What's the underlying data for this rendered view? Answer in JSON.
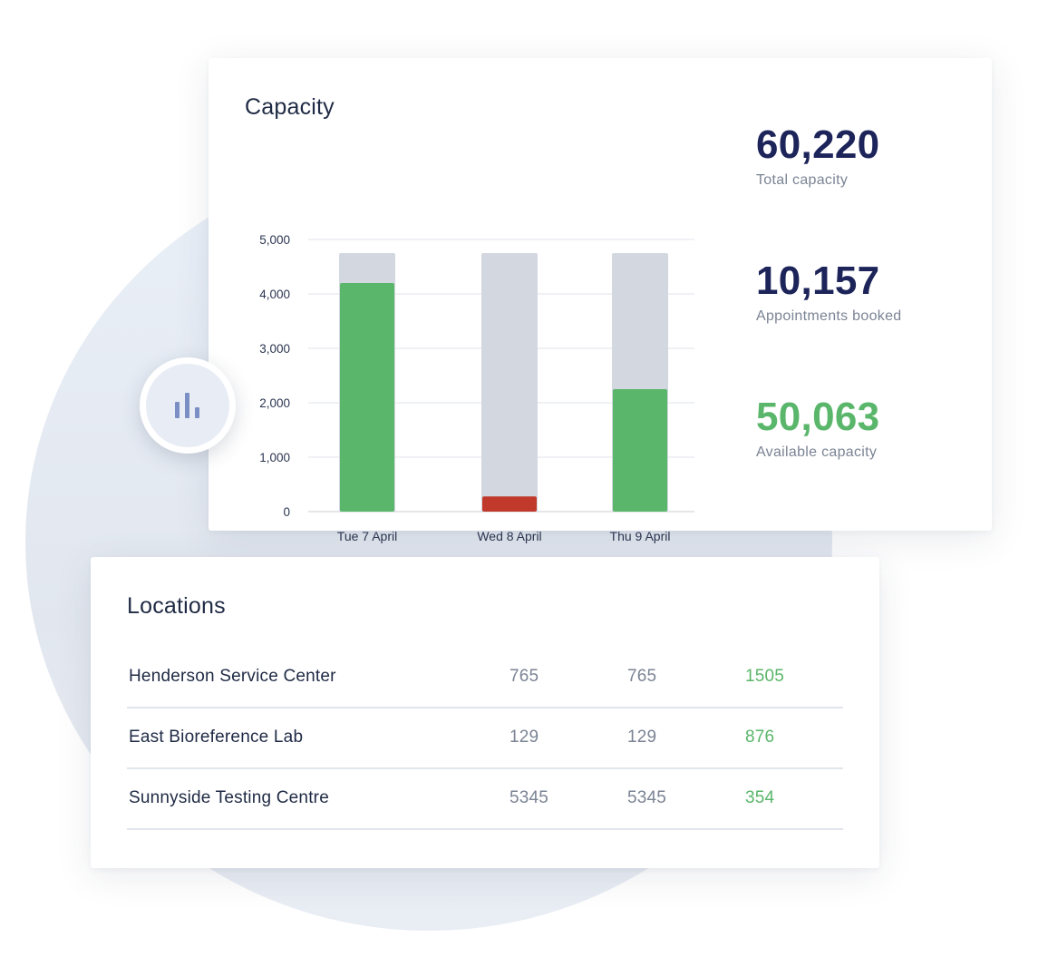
{
  "capacity": {
    "title": "Capacity",
    "stats": [
      {
        "value": "60,220",
        "label": "Total capacity"
      },
      {
        "value": "10,157",
        "label": "Appointments booked"
      },
      {
        "value": "50,063",
        "label": "Available capacity"
      }
    ]
  },
  "chart_data": {
    "type": "bar",
    "title": "Capacity",
    "categories": [
      "Tue 7 April",
      "Wed 8 April",
      "Thu 9 April"
    ],
    "series": [
      {
        "values": [
          4200,
          280,
          2250
        ],
        "colors": [
          "#5ab66a",
          "#c0392b",
          "#5ab66a"
        ]
      },
      {
        "values": [
          4750,
          4750,
          4750
        ],
        "color": "#d3d7df"
      }
    ],
    "yticks": [
      "5,000",
      "4,000",
      "3,000",
      "2,000",
      "1,000",
      "0"
    ],
    "ylim": [
      0,
      5000
    ],
    "grid": true,
    "colors": {
      "booked": "#5ab66a",
      "low": "#c0392b",
      "total": "#d3d7df"
    }
  },
  "chart_badge": {
    "icon": "bar-chart-icon"
  },
  "locations": {
    "title": "Locations",
    "rows": [
      {
        "name": "Henderson Service Center",
        "c1": "765",
        "c2": "765",
        "c3": "1505"
      },
      {
        "name": "East Bioreference Lab",
        "c1": "129",
        "c2": "129",
        "c3": "876"
      },
      {
        "name": "Sunnyside Testing Centre",
        "c1": "5345",
        "c2": "5345",
        "c3": "354"
      }
    ]
  }
}
